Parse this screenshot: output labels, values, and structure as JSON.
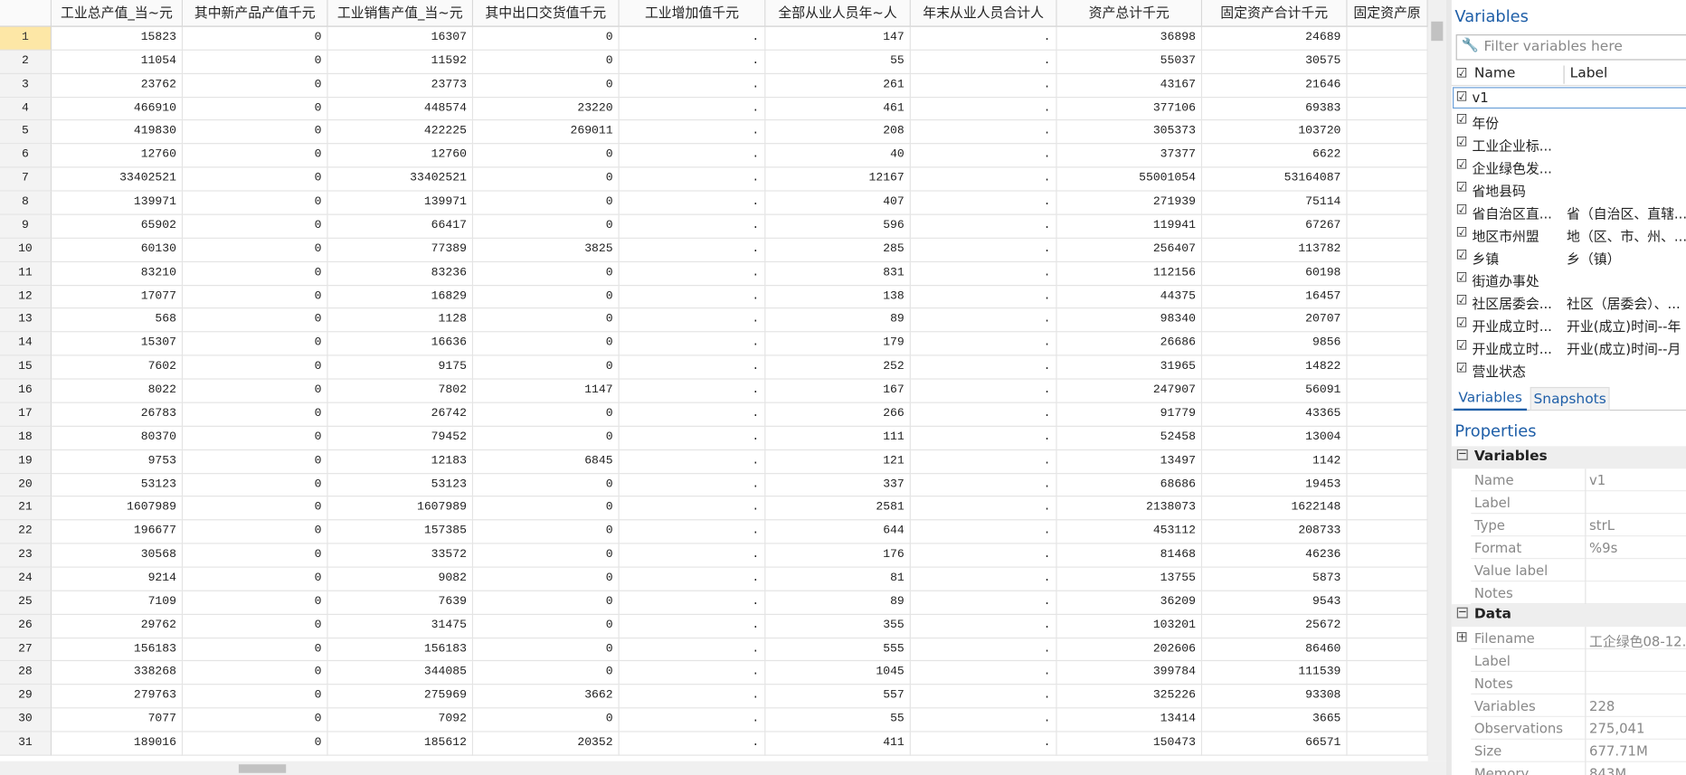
{
  "table": {
    "columns": [
      "工业总产值_当~元",
      "其中新产品产值千元",
      "工业销售产值_当~元",
      "其中出口交货值千元",
      "工业增加值千元",
      "全部从业人员年~人",
      "年末从业人员合计人",
      "资产总计千元",
      "固定资产合计千元",
      "固定资产原"
    ],
    "rows": [
      {
        "n": 1,
        "cells": [
          15823,
          0,
          16307,
          0,
          ".",
          147,
          ".",
          36898,
          24689
        ]
      },
      {
        "n": 2,
        "cells": [
          11054,
          0,
          11592,
          0,
          ".",
          55,
          ".",
          55037,
          30575
        ]
      },
      {
        "n": 3,
        "cells": [
          23762,
          0,
          23773,
          0,
          ".",
          261,
          ".",
          43167,
          21646
        ]
      },
      {
        "n": 4,
        "cells": [
          466910,
          0,
          448574,
          23220,
          ".",
          461,
          ".",
          377106,
          69383
        ]
      },
      {
        "n": 5,
        "cells": [
          419830,
          0,
          422225,
          269011,
          ".",
          208,
          ".",
          305373,
          103720
        ]
      },
      {
        "n": 6,
        "cells": [
          12760,
          0,
          12760,
          0,
          ".",
          40,
          ".",
          37377,
          6622
        ]
      },
      {
        "n": 7,
        "cells": [
          33402521,
          0,
          33402521,
          0,
          ".",
          12167,
          ".",
          55001054,
          53164087
        ]
      },
      {
        "n": 8,
        "cells": [
          139971,
          0,
          139971,
          0,
          ".",
          407,
          ".",
          271939,
          75114
        ]
      },
      {
        "n": 9,
        "cells": [
          65902,
          0,
          66417,
          0,
          ".",
          596,
          ".",
          119941,
          67267
        ]
      },
      {
        "n": 10,
        "cells": [
          60130,
          0,
          77389,
          3825,
          ".",
          285,
          ".",
          256407,
          113782
        ]
      },
      {
        "n": 11,
        "cells": [
          83210,
          0,
          83236,
          0,
          ".",
          831,
          ".",
          112156,
          60198
        ]
      },
      {
        "n": 12,
        "cells": [
          17077,
          0,
          16829,
          0,
          ".",
          138,
          ".",
          44375,
          16457
        ]
      },
      {
        "n": 13,
        "cells": [
          568,
          0,
          1128,
          0,
          ".",
          89,
          ".",
          98340,
          20707
        ]
      },
      {
        "n": 14,
        "cells": [
          15307,
          0,
          16636,
          0,
          ".",
          179,
          ".",
          26686,
          9856
        ]
      },
      {
        "n": 15,
        "cells": [
          7602,
          0,
          9175,
          0,
          ".",
          252,
          ".",
          31965,
          14822
        ]
      },
      {
        "n": 16,
        "cells": [
          8022,
          0,
          7802,
          1147,
          ".",
          167,
          ".",
          247907,
          56091
        ]
      },
      {
        "n": 17,
        "cells": [
          26783,
          0,
          26742,
          0,
          ".",
          266,
          ".",
          91779,
          43365
        ]
      },
      {
        "n": 18,
        "cells": [
          80370,
          0,
          79452,
          0,
          ".",
          111,
          ".",
          52458,
          13004
        ]
      },
      {
        "n": 19,
        "cells": [
          9753,
          0,
          12183,
          6845,
          ".",
          121,
          ".",
          13497,
          1142
        ]
      },
      {
        "n": 20,
        "cells": [
          53123,
          0,
          53123,
          0,
          ".",
          337,
          ".",
          68686,
          19453
        ]
      },
      {
        "n": 21,
        "cells": [
          1607989,
          0,
          1607989,
          0,
          ".",
          2581,
          ".",
          2138073,
          1622148
        ]
      },
      {
        "n": 22,
        "cells": [
          196677,
          0,
          157385,
          0,
          ".",
          644,
          ".",
          453112,
          208733
        ]
      },
      {
        "n": 23,
        "cells": [
          30568,
          0,
          33572,
          0,
          ".",
          176,
          ".",
          81468,
          46236
        ]
      },
      {
        "n": 24,
        "cells": [
          9214,
          0,
          9082,
          0,
          ".",
          81,
          ".",
          13755,
          5873
        ]
      },
      {
        "n": 25,
        "cells": [
          7109,
          0,
          7639,
          0,
          ".",
          89,
          ".",
          36209,
          9543
        ]
      },
      {
        "n": 26,
        "cells": [
          29762,
          0,
          31475,
          0,
          ".",
          355,
          ".",
          103201,
          25672
        ]
      },
      {
        "n": 27,
        "cells": [
          156183,
          0,
          156183,
          0,
          ".",
          555,
          ".",
          202606,
          86460
        ]
      },
      {
        "n": 28,
        "cells": [
          338268,
          0,
          344085,
          0,
          ".",
          1045,
          ".",
          399784,
          111539
        ]
      },
      {
        "n": 29,
        "cells": [
          279763,
          0,
          275969,
          3662,
          ".",
          557,
          ".",
          325226,
          93308
        ]
      },
      {
        "n": 30,
        "cells": [
          7077,
          0,
          7092,
          0,
          ".",
          55,
          ".",
          13414,
          3665
        ]
      },
      {
        "n": 31,
        "cells": [
          189016,
          0,
          185612,
          20352,
          ".",
          411,
          ".",
          150473,
          66571
        ]
      }
    ]
  },
  "variables_panel": {
    "title": "Variables",
    "filter_placeholder": "Filter variables here",
    "headers": [
      "Name",
      "Label"
    ],
    "items": [
      {
        "name": "v1"
      },
      {
        "name": "年份"
      },
      {
        "name": "工业企业标..."
      },
      {
        "name": "企业绿色发..."
      },
      {
        "name": "省地县码"
      },
      {
        "name": "省自治区直...",
        "label": "省（自治区、直辖..."
      },
      {
        "name": "地区市州盟",
        "label": "地（区、市、州、..."
      },
      {
        "name": "乡镇",
        "label": "乡（镇）"
      },
      {
        "name": "街道办事处"
      },
      {
        "name": "社区居委会...",
        "label": "社区（居委会）、..."
      },
      {
        "name": "开业成立时...",
        "label": "开业(成立)时间--年"
      },
      {
        "name": "开业成立时...",
        "label": "开业(成立)时间--月"
      },
      {
        "name": "营业状态"
      }
    ],
    "tabs": [
      "Variables",
      "Snapshots"
    ]
  },
  "properties": {
    "title": "Properties",
    "sections": [
      {
        "title": "Variables",
        "rows": [
          {
            "key": "Name",
            "value": "v1"
          },
          {
            "key": "Label"
          },
          {
            "key": "Type",
            "value": "strL"
          },
          {
            "key": "Format",
            "value": "%9s"
          },
          {
            "key": "Value label"
          },
          {
            "key": "Notes"
          }
        ]
      },
      {
        "title": "Data",
        "rows": [
          {
            "key": "Filename",
            "value": "工企绿色08-12."
          },
          {
            "key": "Label"
          },
          {
            "key": "Notes"
          },
          {
            "key": "Variables",
            "value": "228"
          },
          {
            "key": "Observations",
            "value": "275,041"
          },
          {
            "key": "Size",
            "value": "677.71M"
          },
          {
            "key": "Memory",
            "value": "843M"
          }
        ]
      }
    ]
  }
}
